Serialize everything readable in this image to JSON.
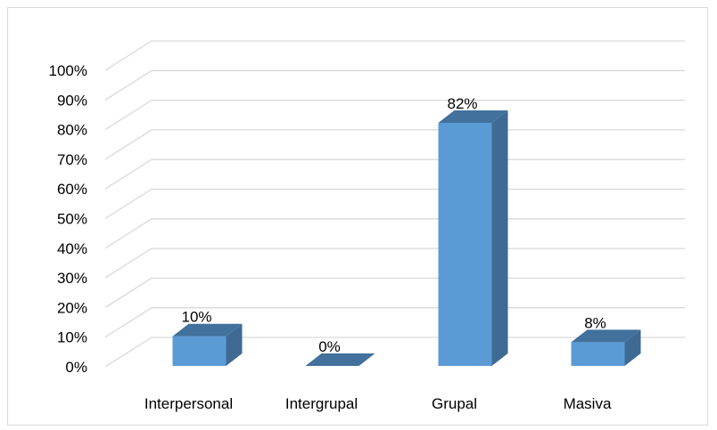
{
  "chart_data": {
    "type": "bar",
    "style": "3d-column",
    "categories": [
      "Interpersonal",
      "Intergrupal",
      "Grupal",
      "Masiva"
    ],
    "values": [
      10,
      0,
      82,
      8
    ],
    "data_labels": [
      "10%",
      "0%",
      "82%",
      "8%"
    ],
    "y_ticks": [
      "0%",
      "10%",
      "20%",
      "30%",
      "40%",
      "50%",
      "60%",
      "70%",
      "80%",
      "90%",
      "100%"
    ],
    "ylim": [
      0,
      100
    ],
    "grid": true,
    "legend": "none",
    "colors": {
      "bar_front": "#5b9bd5",
      "bar_top": "#41719c",
      "bar_side": "#3f6a94",
      "grid": "#d9d9d9"
    }
  }
}
